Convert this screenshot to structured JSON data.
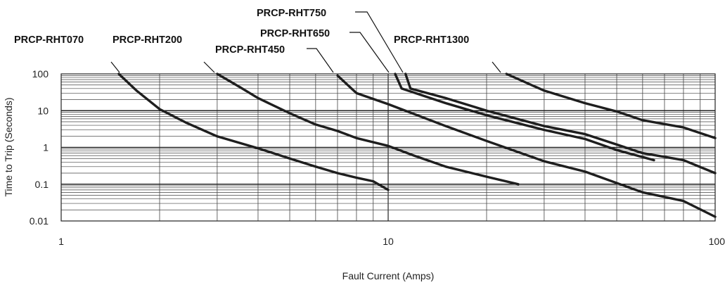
{
  "chart_data": {
    "type": "line",
    "title": "",
    "xlabel": "Fault Current (Amps)",
    "ylabel": "Time to Trip (Seconds)",
    "x_scale": "log",
    "y_scale": "log",
    "xlim": [
      1,
      100
    ],
    "ylim": [
      0.01,
      100
    ],
    "x_tick_labels": [
      "1",
      "10",
      "100"
    ],
    "y_tick_labels": [
      "100",
      "10",
      "1",
      "0.1",
      "0.01"
    ],
    "grid": true,
    "legend": "labels with leader lines above the curves",
    "line_color": "#1e1e1e",
    "series": [
      {
        "name": "PRCP-RHT070",
        "x": [
          1.5,
          1.7,
          2.0,
          2.4,
          3.0,
          4.0,
          5.0,
          6.0,
          7.0,
          8.0,
          9.0,
          10.0
        ],
        "y": [
          100,
          35,
          11,
          4.8,
          2.0,
          0.95,
          0.5,
          0.3,
          0.2,
          0.15,
          0.12,
          0.07
        ]
      },
      {
        "name": "PRCP-RHT200",
        "x": [
          3.0,
          3.5,
          4.0,
          5.0,
          6.0,
          7.0,
          8.0,
          10.0,
          12.0,
          15.0,
          20.0,
          25.0
        ],
        "y": [
          100,
          45,
          22,
          8.5,
          4.2,
          2.8,
          1.8,
          1.1,
          0.6,
          0.3,
          0.16,
          0.1
        ]
      },
      {
        "name": "PRCP-RHT450",
        "x": [
          7.0,
          8.0,
          10.0,
          15.0,
          20.0,
          30.0,
          40.0,
          60.0,
          80.0,
          100.0
        ],
        "y": [
          90,
          30,
          15,
          3.8,
          1.5,
          0.42,
          0.22,
          0.06,
          0.035,
          0.013
        ]
      },
      {
        "name": "PRCP-RHT650",
        "x": [
          10.5,
          11.0,
          15.0,
          20.0,
          30.0,
          40.0,
          50.0,
          65.0
        ],
        "y": [
          100,
          40,
          16,
          7.5,
          3.0,
          1.7,
          0.85,
          0.45
        ]
      },
      {
        "name": "PRCP-RHT750",
        "x": [
          11.3,
          11.7,
          15.0,
          20.0,
          30.0,
          40.0,
          50.0,
          60.0,
          80.0,
          100.0
        ],
        "y": [
          100,
          40,
          22,
          10,
          3.8,
          2.3,
          1.2,
          0.7,
          0.45,
          0.2
        ]
      },
      {
        "name": "PRCP-RHT1300",
        "x": [
          23.0,
          30.0,
          40.0,
          50.0,
          60.0,
          80.0,
          100.0
        ],
        "y": [
          100,
          35,
          16,
          9.5,
          5.5,
          3.5,
          1.8
        ]
      }
    ]
  }
}
